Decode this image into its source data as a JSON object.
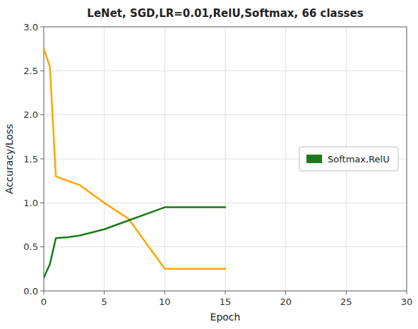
{
  "chart_data": {
    "type": "line",
    "title": "LeNet, SGD,LR=0.01,RelU,Softmax, 66 classes",
    "x_label": "Epoch",
    "y_label": "Accuracy/Loss",
    "x": [
      0,
      0.5,
      1,
      2,
      3,
      5,
      7,
      10,
      15
    ],
    "series": [
      {
        "color": "#FFA500",
        "values": [
          2.75,
          2.55,
          1.3,
          1.25,
          1.2,
          1.0,
          0.82,
          0.25,
          0.25
        ]
      },
      {
        "name": "Softmax,RelU",
        "color": "#1a7a1a",
        "values": [
          0.15,
          0.3,
          0.6,
          0.61,
          0.63,
          0.7,
          0.8,
          0.95,
          0.95
        ]
      }
    ],
    "xlim": [
      0,
      30
    ],
    "ylim": [
      0.0,
      3.0
    ],
    "xticks": [
      0,
      5,
      10,
      15,
      20,
      25,
      30
    ],
    "yticks": [
      {
        "value": 0.0,
        "label": "0.0"
      },
      0.5,
      {
        "value": 1.0,
        "label": "1.0"
      },
      1.5,
      {
        "value": 2.0,
        "label": "2.0"
      },
      2.5,
      {
        "value": 3.0,
        "label": "3.0"
      }
    ],
    "grid": true,
    "legend": "right"
  }
}
